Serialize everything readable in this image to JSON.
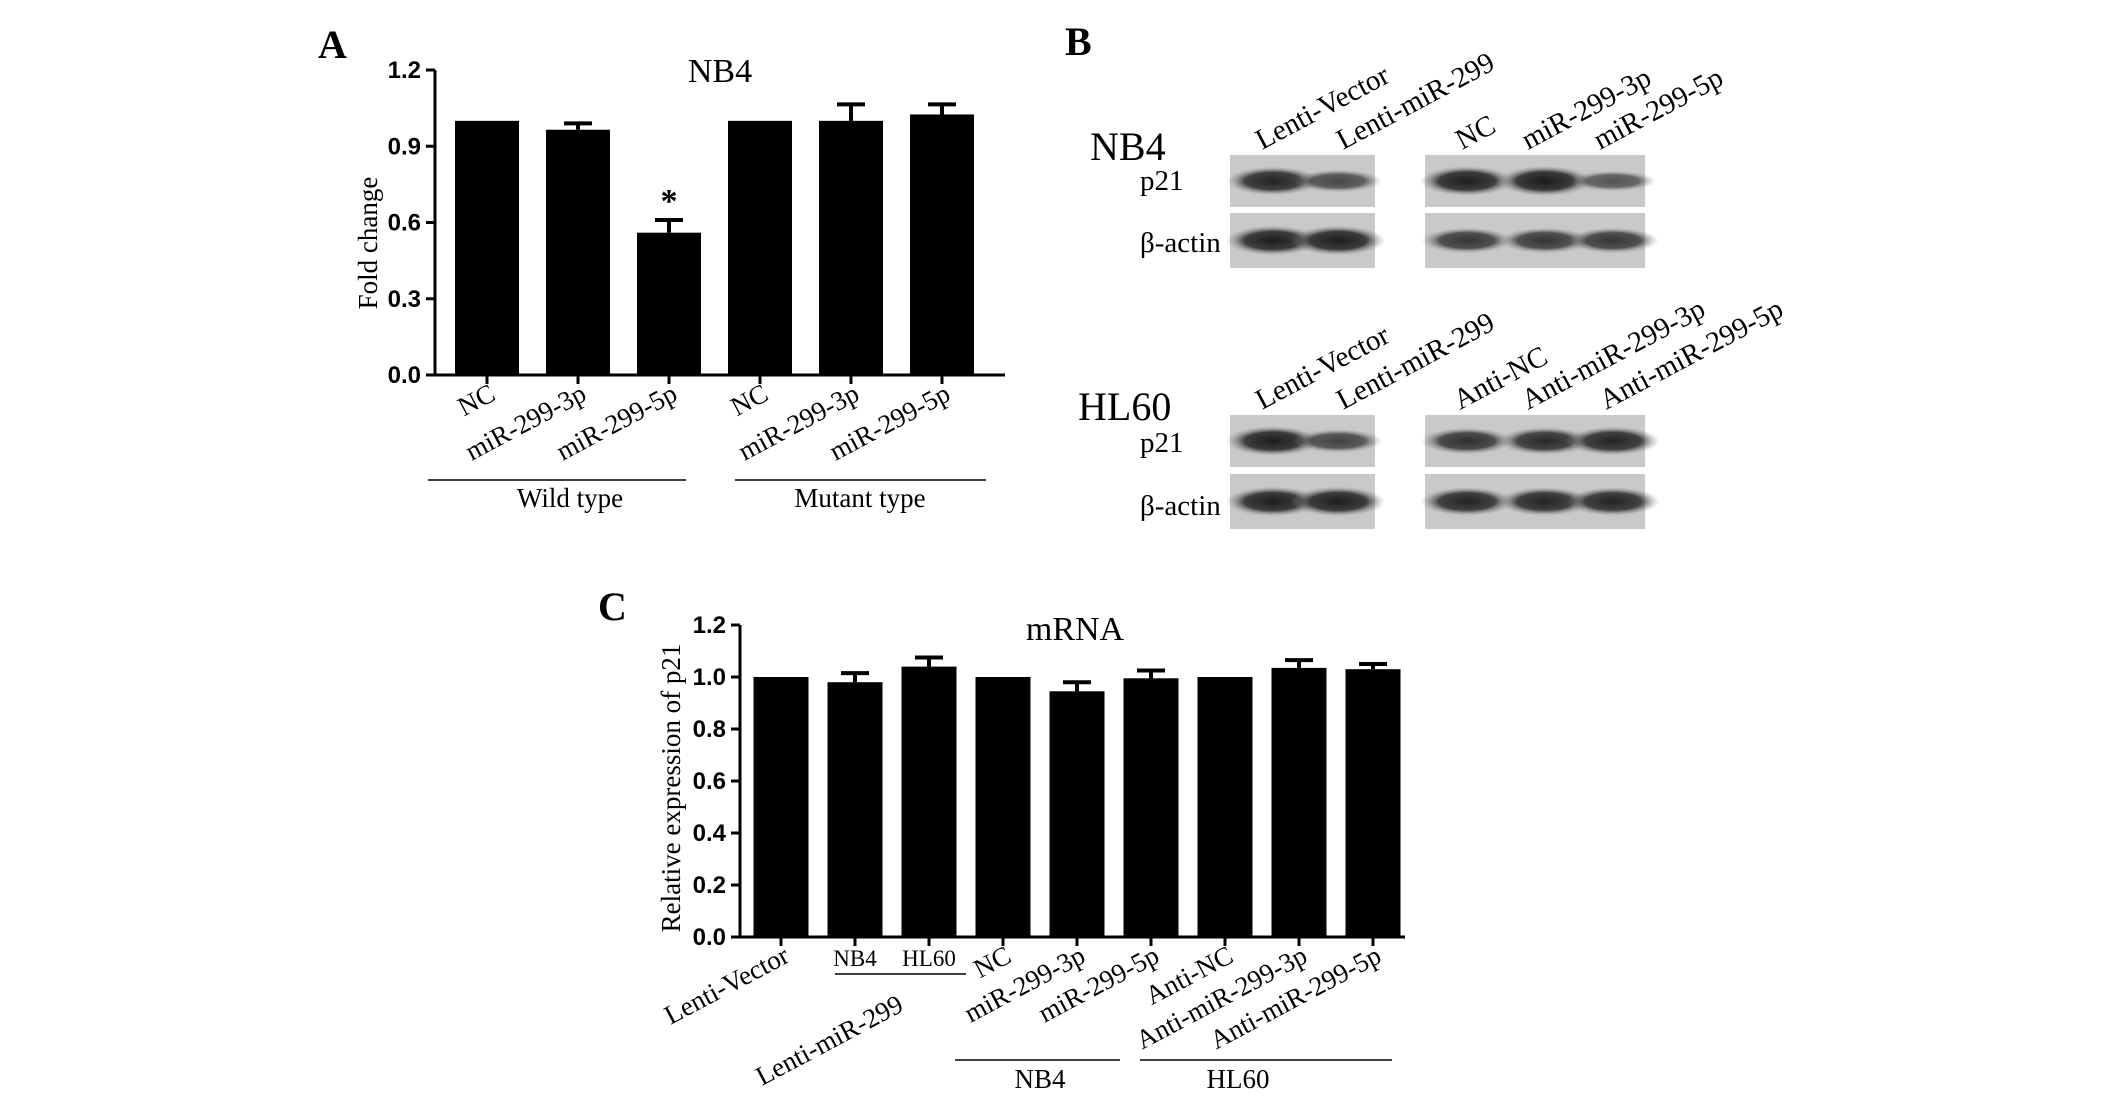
{
  "panels": {
    "A": {
      "letter": "A",
      "group_labels": [
        "Wild type",
        "Mutant type"
      ],
      "star": "*"
    },
    "B": {
      "letter": "B",
      "cell_lines": [
        "NB4",
        "HL60"
      ],
      "rows": [
        "p21",
        "β-actin"
      ],
      "nb4_lanes_left": [
        "Lenti-Vector",
        "Lenti-miR-299"
      ],
      "nb4_lanes_right": [
        "NC",
        "miR-299-3p",
        "miR-299-5p"
      ],
      "hl60_lanes_left": [
        "Lenti-Vector",
        "Lenti-miR-299"
      ],
      "hl60_lanes_right": [
        "Anti-NC",
        "Anti-miR-299-3p",
        "Anti-miR-299-5p"
      ],
      "band_intensity": {
        "nb4_p21": [
          0.85,
          0.55,
          0.9,
          0.92,
          0.45
        ],
        "nb4_actin": [
          0.9,
          0.9,
          0.7,
          0.7,
          0.7
        ],
        "hl60_p21": [
          0.9,
          0.6,
          0.75,
          0.8,
          0.85
        ],
        "hl60_actin": [
          0.9,
          0.9,
          0.85,
          0.85,
          0.85
        ]
      }
    },
    "C": {
      "letter": "C",
      "sub_labels": [
        "NB4",
        "HL60"
      ],
      "group_labels": [
        "NB4",
        "HL60"
      ],
      "lenti_label": "Lenti-miR-299"
    }
  },
  "chart_data": [
    {
      "type": "bar",
      "title": "NB4",
      "ylabel": "Fold change",
      "xlabel": "",
      "categories": [
        "NC",
        "miR-299-3p",
        "miR-299-5p",
        "NC",
        "miR-299-3p",
        "miR-299-5p"
      ],
      "values": [
        1.0,
        0.965,
        0.56,
        1.0,
        1.0,
        1.025
      ],
      "errors": [
        0.0,
        0.025,
        0.05,
        0.0,
        0.065,
        0.04
      ],
      "ylim": [
        0,
        1.2
      ],
      "yticks": [
        "0.0",
        "0.3",
        "0.6",
        "0.9",
        "1.2"
      ],
      "groups": [
        {
          "label": "Wild type",
          "categories": [
            "NC",
            "miR-299-3p",
            "miR-299-5p"
          ]
        },
        {
          "label": "Mutant type",
          "categories": [
            "NC",
            "miR-299-3p",
            "miR-299-5p"
          ]
        }
      ],
      "annotations": [
        {
          "category_index": 2,
          "text": "*"
        }
      ],
      "color": "#000000"
    },
    {
      "type": "bar",
      "title": "mRNA",
      "ylabel": "Relative expression of p21",
      "xlabel": "",
      "categories": [
        "Lenti-Vector",
        "NB4",
        "HL60",
        "NC",
        "miR-299-3p",
        "miR-299-5p",
        "Anti-NC",
        "Anti-miR-299-3p",
        "Anti-miR-299-5p"
      ],
      "values": [
        1.0,
        0.98,
        1.04,
        1.0,
        0.945,
        0.995,
        1.0,
        1.035,
        1.03
      ],
      "errors": [
        0.0,
        0.035,
        0.035,
        0.0,
        0.035,
        0.03,
        0.0,
        0.03,
        0.02
      ],
      "ylim": [
        0,
        1.2
      ],
      "yticks": [
        "0.0",
        "0.2",
        "0.4",
        "0.6",
        "0.8",
        "1.0",
        "1.2"
      ],
      "groups": [
        {
          "label": "Lenti-miR-299",
          "categories": [
            "NB4",
            "HL60"
          ]
        },
        {
          "label": "NB4",
          "categories": [
            "NC",
            "miR-299-3p",
            "miR-299-5p"
          ]
        },
        {
          "label": "HL60",
          "categories": [
            "Anti-NC",
            "Anti-miR-299-3p",
            "Anti-miR-299-5p"
          ]
        }
      ],
      "color": "#000000"
    }
  ]
}
